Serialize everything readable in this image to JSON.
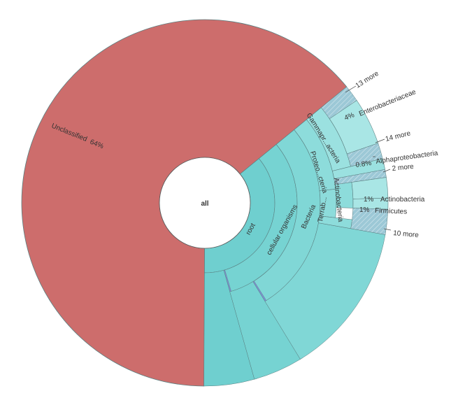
{
  "chart_data": {
    "type": "sunburst",
    "center_label": "all",
    "colors": {
      "unclassified": "#cd6d6c",
      "root": "#6fcfcf",
      "cellular": "#76d3d2",
      "bacteria": "#80d7d6",
      "proteo": "#8ddcdb",
      "gamma": "#9be1e0",
      "entero": "#a9e6e5",
      "hatch": "#9cc8d6",
      "stroke": "#5a7f80"
    },
    "rings": [
      [
        {
          "name": "Unclassified",
          "percent": 64,
          "label": "Unclassified",
          "value_label": "64%"
        },
        {
          "name": "root",
          "percent": 36,
          "label": "root"
        }
      ],
      [
        {
          "name": "cellular organisms",
          "label": "cellular organisms"
        }
      ],
      [
        {
          "name": "Bacteria",
          "label": "Bacteria"
        }
      ],
      [
        {
          "name": "Proteobacteria",
          "label": "Proteo...cteria"
        },
        {
          "name": "Terrabacteria group",
          "label": "Terrab..."
        },
        {
          "name": "Actinobacteria",
          "label": "Actinobacteria"
        }
      ],
      [
        {
          "name": "Gammaproteobacteria",
          "label": "Gammapr...acteria"
        }
      ]
    ],
    "outer_labels": [
      {
        "text": "13 more"
      },
      {
        "text": "Enterobacteriaceae",
        "value_label": "4%"
      },
      {
        "text": "14 more"
      },
      {
        "text": "Alphaproteobacteria",
        "value_label": "0.8%"
      },
      {
        "text": "2 more"
      },
      {
        "text": "Actinobacteria",
        "value_label": "1%"
      },
      {
        "text": "Firmicutes",
        "value_label": "1%"
      },
      {
        "text": "10 more"
      }
    ]
  }
}
